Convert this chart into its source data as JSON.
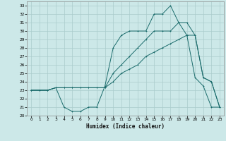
{
  "xlabel": "Humidex (Indice chaleur)",
  "ylabel": "",
  "xlim": [
    -0.5,
    23.5
  ],
  "ylim": [
    20,
    33.5
  ],
  "yticks": [
    20,
    21,
    22,
    23,
    24,
    25,
    26,
    27,
    28,
    29,
    30,
    31,
    32,
    33
  ],
  "xticks": [
    0,
    1,
    2,
    3,
    4,
    5,
    6,
    7,
    8,
    9,
    10,
    11,
    12,
    13,
    14,
    15,
    16,
    17,
    18,
    19,
    20,
    21,
    22,
    23
  ],
  "bg_color": "#cce8e8",
  "grid_color": "#aacccc",
  "line_color": "#1a6b6b",
  "line1_x": [
    0,
    1,
    2,
    3,
    4,
    5,
    6,
    7,
    8,
    9,
    10,
    11,
    12,
    13,
    14,
    15,
    16,
    17,
    18,
    19,
    20,
    21,
    22,
    23
  ],
  "line1_y": [
    23,
    23,
    23,
    23.3,
    21,
    20.5,
    20.5,
    21,
    21,
    23.5,
    28,
    29.5,
    30,
    30,
    30,
    32,
    32,
    33,
    31,
    29.5,
    24.5,
    23.5,
    21,
    21
  ],
  "line2_x": [
    0,
    1,
    2,
    3,
    4,
    5,
    6,
    7,
    8,
    9,
    10,
    11,
    12,
    13,
    14,
    15,
    16,
    17,
    18,
    19,
    20,
    21,
    22,
    23
  ],
  "line2_y": [
    23,
    23,
    23,
    23.3,
    23.3,
    23.3,
    23.3,
    23.3,
    23.3,
    23.3,
    25,
    26,
    27,
    28,
    29,
    30,
    30,
    30,
    31,
    31,
    29.5,
    24.5,
    24,
    21
  ],
  "line3_x": [
    0,
    1,
    2,
    3,
    4,
    5,
    6,
    7,
    8,
    9,
    10,
    11,
    12,
    13,
    14,
    15,
    16,
    17,
    18,
    19,
    20,
    21,
    22,
    23
  ],
  "line3_y": [
    23,
    23,
    23,
    23.3,
    23.3,
    23.3,
    23.3,
    23.3,
    23.3,
    23.3,
    24,
    25,
    25.5,
    26,
    27,
    27.5,
    28,
    28.5,
    29,
    29.5,
    29.5,
    24.5,
    24,
    21
  ]
}
